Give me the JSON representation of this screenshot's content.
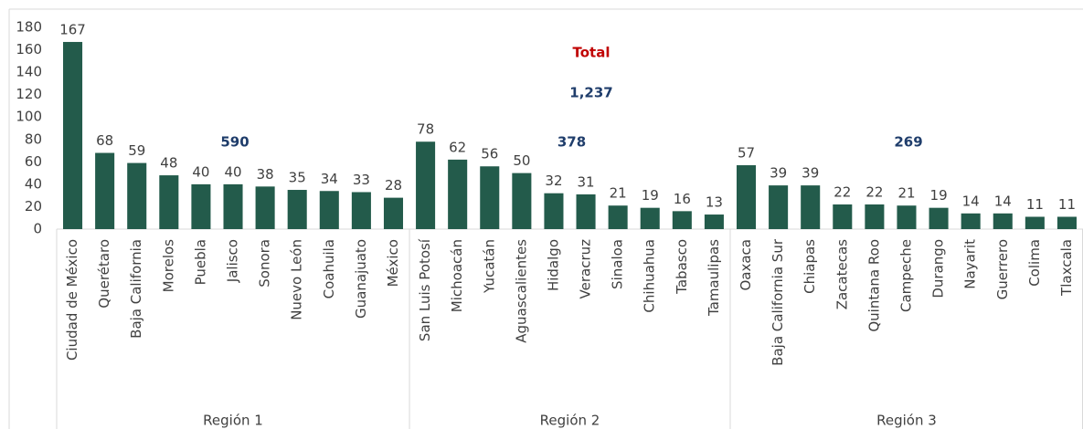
{
  "chart_data": {
    "type": "bar",
    "color": "#235b4b",
    "ylim": [
      0,
      180
    ],
    "yticks": [
      0,
      20,
      40,
      60,
      80,
      100,
      120,
      140,
      160,
      180
    ],
    "annotation": "Total",
    "total": {
      "value": 1237,
      "label": "1,237"
    },
    "groups": [
      {
        "name": "Región 1",
        "total": 590,
        "categories": [
          "Ciudad de México",
          "Querétaro",
          "Baja California",
          "Morelos",
          "Puebla",
          "Jalisco",
          "Sonora",
          "Nuevo León",
          "Coahuila",
          "Guanajuato",
          "México"
        ],
        "values": [
          167,
          68,
          59,
          48,
          40,
          40,
          38,
          35,
          34,
          33,
          28
        ]
      },
      {
        "name": "Región 2",
        "total": 378,
        "categories": [
          "San Luis Potosí",
          "Michoacán",
          "Yucatán",
          "Aguascalientes",
          "Hidalgo",
          "Veracruz",
          "Sinaloa",
          "Chihuahua",
          "Tabasco",
          "Tamaulipas"
        ],
        "values": [
          78,
          62,
          56,
          50,
          32,
          31,
          21,
          19,
          16,
          13
        ]
      },
      {
        "name": "Región 3",
        "total": 269,
        "categories": [
          "Oaxaca",
          "Baja California Sur",
          "Chiapas",
          "Zacatecas",
          "Quintana Roo",
          "Campeche",
          "Durango",
          "Nayarit",
          "Guerrero",
          "Colima",
          "Tlaxcala"
        ],
        "values": [
          57,
          39,
          39,
          22,
          22,
          21,
          19,
          14,
          14,
          11,
          11
        ]
      }
    ]
  }
}
